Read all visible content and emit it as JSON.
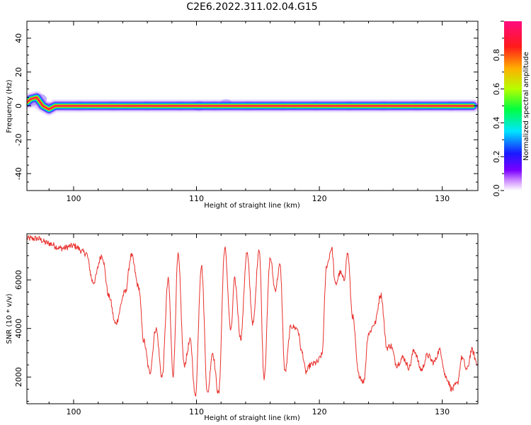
{
  "title": "C2E6.2022.311.02.04.G15",
  "colors": {
    "trace": "#e8302c",
    "colormap": [
      "#ffffff",
      "#cc88ff",
      "#7a00ff",
      "#1a1aff",
      "#00e5ff",
      "#00ff40",
      "#b5ff00",
      "#ffb000",
      "#ff1a1a",
      "#ff0a80"
    ]
  },
  "chart_data": [
    {
      "type": "heatmap",
      "xlabel": "Height of straight line (km)",
      "ylabel": "Frequency (Hz)",
      "xlim": [
        96.2,
        132.9
      ],
      "ylim": [
        -50,
        50
      ],
      "xticks": [
        100,
        110,
        120,
        130
      ],
      "xtick_labels": [
        "100",
        "110",
        "120",
        "130"
      ],
      "yticks": [
        -40,
        -20,
        0,
        20,
        40
      ],
      "ytick_labels": [
        "-40",
        "-20",
        "0",
        "20",
        "40"
      ],
      "colorbar": {
        "label": "Normalized spectral amplitude",
        "range": [
          0,
          1
        ],
        "ticks": [
          0.0,
          0.2,
          0.4,
          0.6,
          0.8
        ],
        "tick_labels": [
          "0.0",
          "0.2",
          "0.4",
          "0.6",
          "0.8"
        ]
      },
      "ridge": {
        "x": [
          96.2,
          96.5,
          97.0,
          97.5,
          98.0,
          98.5,
          99.0,
          132.5
        ],
        "y": [
          2,
          4,
          5,
          0,
          -2,
          0,
          0,
          0
        ]
      }
    },
    {
      "type": "line",
      "xlabel": "Height of straight line (km)",
      "ylabel": "SNR (10 * v/v)",
      "xlim": [
        96.2,
        132.9
      ],
      "ylim": [
        900,
        7900
      ],
      "xticks": [
        100,
        110,
        120,
        130
      ],
      "xtick_labels": [
        "100",
        "110",
        "120",
        "130"
      ],
      "yticks": [
        2000,
        4000,
        6000
      ],
      "ytick_labels": [
        "2000",
        "4000",
        "6000"
      ],
      "series": [
        {
          "x": [
            96.2,
            97.0,
            98.0,
            99.0,
            100.0,
            101.0,
            101.6,
            102.3,
            102.9,
            103.4,
            104.2,
            104.7,
            105.3,
            105.7,
            106.2,
            106.7,
            107.2,
            107.7,
            108.1,
            108.5,
            109.0,
            109.5,
            109.9,
            110.4,
            110.9,
            111.3,
            111.8,
            112.3,
            112.8,
            113.1,
            113.6,
            114.1,
            114.6,
            115.1,
            115.5,
            116.0,
            116.4,
            116.8,
            117.2,
            117.7,
            118.2,
            118.6,
            118.9,
            119.3,
            119.8,
            120.2,
            120.6,
            121.0,
            121.3,
            121.7,
            122.0,
            122.3,
            122.7,
            123.2,
            123.6,
            124.0,
            124.5,
            125.0,
            125.5,
            125.8,
            126.3,
            126.8,
            127.3,
            127.7,
            128.3,
            128.8,
            129.3,
            129.8,
            130.3,
            130.8,
            131.2,
            131.6,
            132.0,
            132.4,
            132.9
          ],
          "y": [
            7700,
            7700,
            7500,
            7300,
            7400,
            7100,
            5900,
            7000,
            5300,
            4200,
            5500,
            7000,
            5700,
            3500,
            2200,
            4000,
            2000,
            6000,
            2100,
            7000,
            2500,
            3500,
            1200,
            6600,
            1300,
            3000,
            1300,
            7300,
            3900,
            6000,
            3600,
            7100,
            4200,
            7300,
            2000,
            6900,
            5600,
            6600,
            2200,
            4100,
            4000,
            3000,
            2200,
            2500,
            2600,
            2900,
            6600,
            7300,
            5800,
            6300,
            6000,
            7100,
            4500,
            2100,
            1800,
            3800,
            4200,
            5400,
            3200,
            3300,
            2500,
            2800,
            2400,
            3100,
            2300,
            2900,
            2600,
            3100,
            2000,
            1500,
            1700,
            2800,
            2300,
            3100,
            2500
          ]
        }
      ]
    }
  ]
}
